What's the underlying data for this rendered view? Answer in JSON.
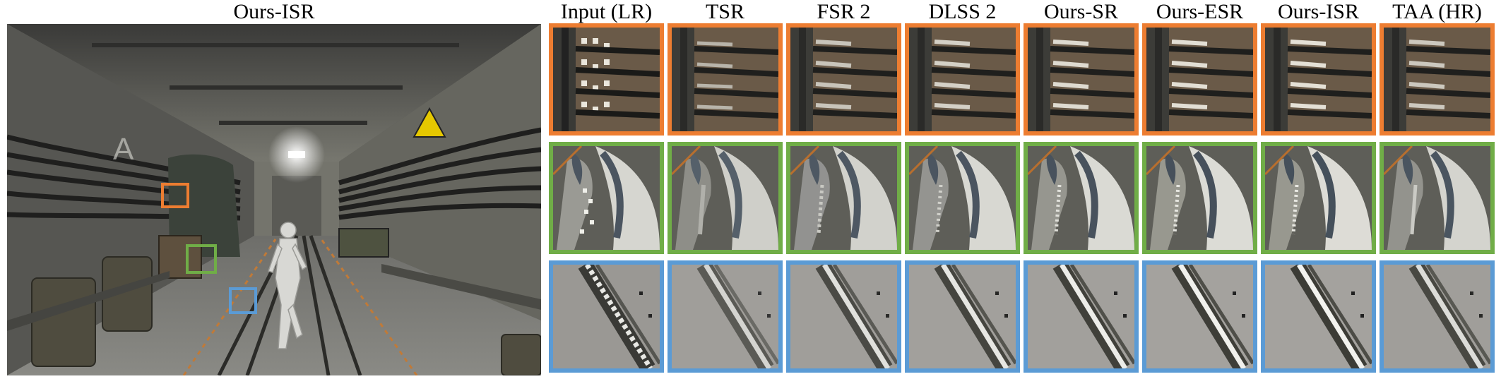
{
  "main_image": {
    "title": "Ours-ISR",
    "scene_icon": "industrial-corridor-scene"
  },
  "columns": [
    "Input (LR)",
    "TSR",
    "FSR 2",
    "DLSS 2",
    "Ours-SR",
    "Ours-ESR",
    "Ours-ISR",
    "TAA (HR)"
  ],
  "rows": [
    {
      "region": "cable-rack",
      "color": "#ED7D31"
    },
    {
      "region": "character-legs",
      "color": "#70AD47"
    },
    {
      "region": "rail-track",
      "color": "#5B9BD5"
    }
  ],
  "styles": {
    "background": "#ffffff",
    "text": "#000000"
  }
}
